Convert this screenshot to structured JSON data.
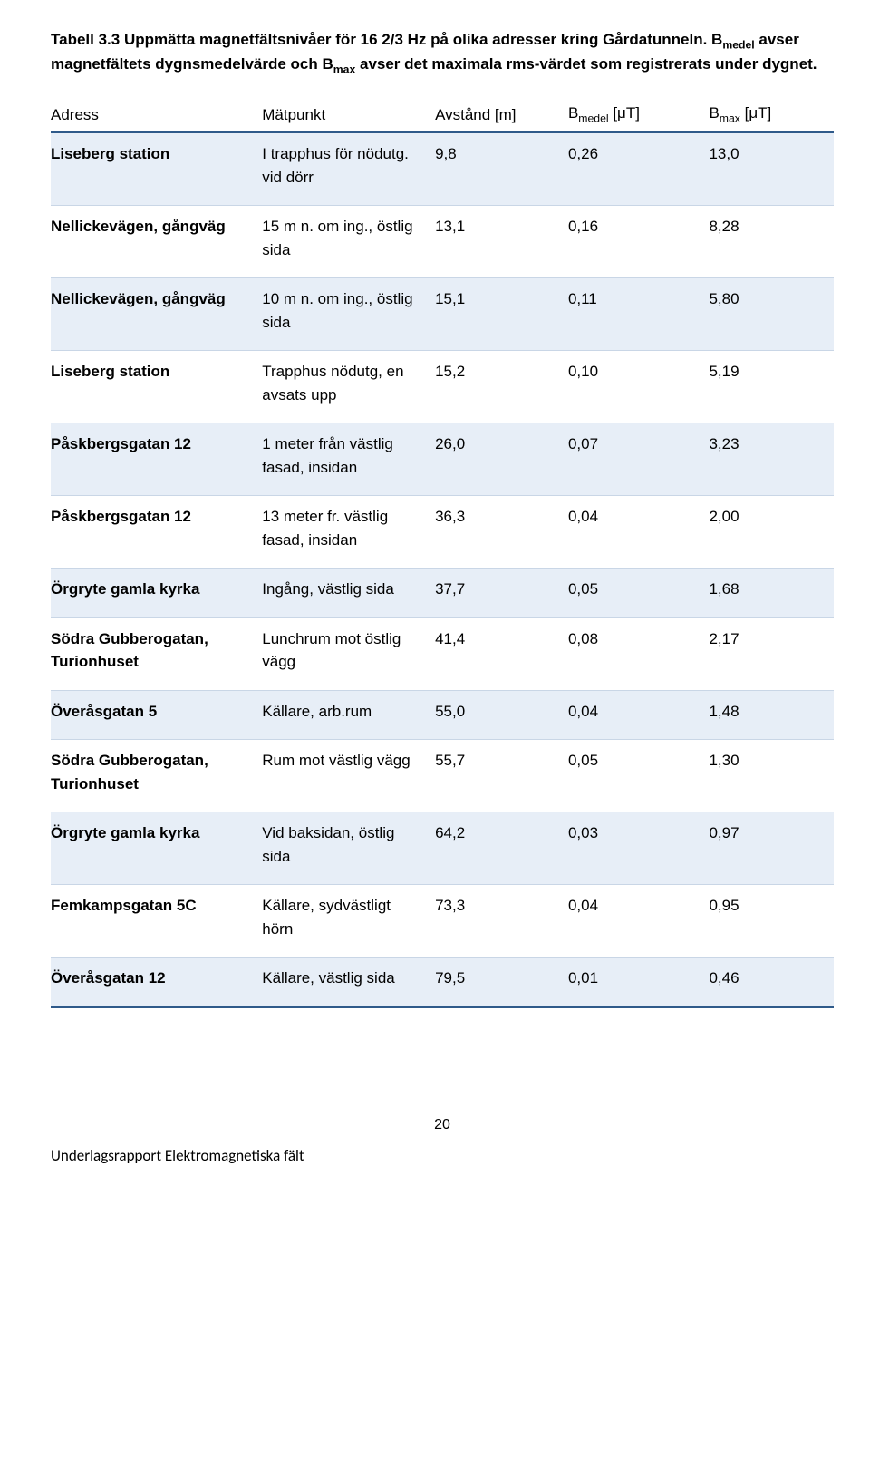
{
  "caption_plain": "Tabell 3.3 Uppmätta magnetfältsnivåer för 16 2/3 Hz på olika adresser kring Gårdatunneln. B",
  "caption_sub1": "medel",
  "caption_mid": " avser magnetfältets dygnsmedelvärde och B",
  "caption_sub2": "max",
  "caption_end": " avser det maximala rms-värdet som registrerats under dygnet.",
  "headers": {
    "adress": "Adress",
    "matpunkt": "Mätpunkt",
    "avstand": "Avstånd [m]",
    "bmedel_pre": "B",
    "bmedel_sub": "medel",
    "bmedel_post": " [μT]",
    "bmax_pre": "B",
    "bmax_sub": "max",
    "bmax_post": " [μT]"
  },
  "rows": [
    {
      "shade": true,
      "adress": "Liseberg station",
      "mat": "I trapphus för nödutg. vid dörr",
      "avst": "9,8",
      "bmed": "0,26",
      "bmax": "13,0"
    },
    {
      "shade": false,
      "adress": "Nellickevägen, gångväg",
      "mat": "15 m n. om ing., östlig sida",
      "avst": "13,1",
      "bmed": "0,16",
      "bmax": "8,28"
    },
    {
      "shade": true,
      "adress": "Nellickevägen, gångväg",
      "mat": "10 m n. om ing., östlig sida",
      "avst": "15,1",
      "bmed": "0,11",
      "bmax": "5,80"
    },
    {
      "shade": false,
      "adress": "Liseberg station",
      "mat": "Trapphus nödutg, en avsats upp",
      "avst": "15,2",
      "bmed": "0,10",
      "bmax": "5,19"
    },
    {
      "shade": true,
      "adress": "Påskbergsgatan 12",
      "mat": "1 meter från västlig fasad, insidan",
      "avst": "26,0",
      "bmed": "0,07",
      "bmax": "3,23"
    },
    {
      "shade": false,
      "adress": "Påskbergsgatan 12",
      "mat": "13 meter fr. västlig fasad, insidan",
      "avst": "36,3",
      "bmed": "0,04",
      "bmax": "2,00"
    },
    {
      "shade": true,
      "adress": "Örgryte gamla kyrka",
      "mat": "Ingång, väst­lig sida",
      "avst": "37,7",
      "bmed": "0,05",
      "bmax": "1,68"
    },
    {
      "shade": false,
      "adress": "Södra Gubberogatan, Turionhuset",
      "mat": "Lunchrum mot östlig vägg",
      "avst": "41,4",
      "bmed": "0,08",
      "bmax": "2,17"
    },
    {
      "shade": true,
      "adress": "Överåsgatan 5",
      "mat": "Källare, arb.rum",
      "avst": "55,0",
      "bmed": "0,04",
      "bmax": "1,48"
    },
    {
      "shade": false,
      "adress": "Södra Gubberogatan, Turionhuset",
      "mat": "Rum mot västlig vägg",
      "avst": "55,7",
      "bmed": "0,05",
      "bmax": "1,30"
    },
    {
      "shade": true,
      "adress": "Örgryte gamla kyrka",
      "mat": "Vid baksidan, östlig sida",
      "avst": "64,2",
      "bmed": "0,03",
      "bmax": "0,97"
    },
    {
      "shade": false,
      "adress": "Femkampsgatan 5C",
      "mat": "Källare, syd­västligt hörn",
      "avst": "73,3",
      "bmed": "0,04",
      "bmax": "0,95"
    },
    {
      "shade": true,
      "adress": "Överåsgatan 12",
      "mat": "Källare, väst­lig sida",
      "avst": "79,5",
      "bmed": "0,01",
      "bmax": "0,46"
    }
  ],
  "page_number": "20",
  "footer_text": "Underlagsrapport Elektromagnetiska fält",
  "colors": {
    "header_border": "#2f5a8a",
    "row_border": "#c9d6e6",
    "shade_bg": "#e7eef7"
  }
}
